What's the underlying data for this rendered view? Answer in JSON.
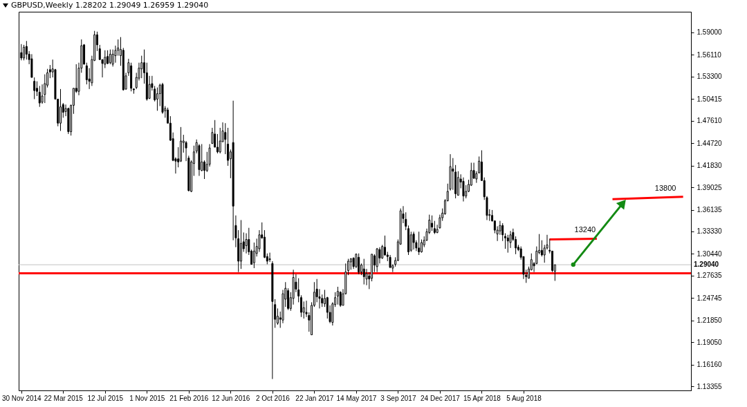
{
  "chart_data": {
    "type": "candlestick",
    "title": "GBPUSD,Weekly  1.28202 1.29049 1.26959 1.29040",
    "x": [
      "2014-11-30",
      "2014-12-07",
      "2014-12-14",
      "2014-12-21",
      "2014-12-28",
      "2015-01-04",
      "2015-01-11",
      "2015-01-18",
      "2015-01-25",
      "2015-02-01",
      "2015-02-08",
      "2015-02-15",
      "2015-02-22",
      "2015-03-01",
      "2015-03-08",
      "2015-03-15",
      "2015-03-22",
      "2015-03-29",
      "2015-04-05",
      "2015-04-12",
      "2015-04-19",
      "2015-04-26",
      "2015-05-03",
      "2015-05-10",
      "2015-05-17",
      "2015-05-24",
      "2015-05-31",
      "2015-06-07",
      "2015-06-14",
      "2015-06-21",
      "2015-06-28",
      "2015-07-05",
      "2015-07-12",
      "2015-07-19",
      "2015-07-26",
      "2015-08-02",
      "2015-08-09",
      "2015-08-16",
      "2015-08-23",
      "2015-08-30",
      "2015-09-06",
      "2015-09-13",
      "2015-09-20",
      "2015-09-27",
      "2015-10-04",
      "2015-10-11",
      "2015-10-18",
      "2015-10-25",
      "2015-11-01",
      "2015-11-08",
      "2015-11-15",
      "2015-11-22",
      "2015-11-29",
      "2015-12-06",
      "2015-12-13",
      "2015-12-20",
      "2015-12-27",
      "2016-01-03",
      "2016-01-10",
      "2016-01-17",
      "2016-01-24",
      "2016-01-31",
      "2016-02-07",
      "2016-02-14",
      "2016-02-21",
      "2016-02-28",
      "2016-03-06",
      "2016-03-13",
      "2016-03-20",
      "2016-03-27",
      "2016-04-03",
      "2016-04-10",
      "2016-04-17",
      "2016-04-24",
      "2016-05-01",
      "2016-05-08",
      "2016-05-15",
      "2016-05-22",
      "2016-05-29",
      "2016-06-05",
      "2016-06-12",
      "2016-06-19",
      "2016-06-26",
      "2016-07-03",
      "2016-07-10",
      "2016-07-17",
      "2016-07-24",
      "2016-07-31",
      "2016-08-07",
      "2016-08-14",
      "2016-08-21",
      "2016-08-28",
      "2016-09-04",
      "2016-09-11",
      "2016-09-18",
      "2016-09-25",
      "2016-10-02",
      "2016-10-09",
      "2016-10-16",
      "2016-10-23",
      "2016-10-30",
      "2016-11-06",
      "2016-11-13",
      "2016-11-20",
      "2016-11-27",
      "2016-12-04",
      "2016-12-11",
      "2016-12-18",
      "2016-12-25",
      "2017-01-01",
      "2017-01-08",
      "2017-01-15",
      "2017-01-22",
      "2017-01-29",
      "2017-02-05",
      "2017-02-12",
      "2017-02-19",
      "2017-02-26",
      "2017-03-05",
      "2017-03-12",
      "2017-03-19",
      "2017-03-26",
      "2017-04-02",
      "2017-04-09",
      "2017-04-16",
      "2017-04-23",
      "2017-04-30",
      "2017-05-07",
      "2017-05-14",
      "2017-05-21",
      "2017-05-28",
      "2017-06-04",
      "2017-06-11",
      "2017-06-18",
      "2017-06-25",
      "2017-07-02",
      "2017-07-09",
      "2017-07-16",
      "2017-07-23",
      "2017-07-30",
      "2017-08-06",
      "2017-08-13",
      "2017-08-20",
      "2017-08-27",
      "2017-09-03",
      "2017-09-10",
      "2017-09-17",
      "2017-09-24",
      "2017-10-01",
      "2017-10-08",
      "2017-10-15",
      "2017-10-22",
      "2017-10-29",
      "2017-11-05",
      "2017-11-12",
      "2017-11-19",
      "2017-11-26",
      "2017-12-03",
      "2017-12-10",
      "2017-12-17",
      "2017-12-24",
      "2017-12-31",
      "2018-01-07",
      "2018-01-14",
      "2018-01-21",
      "2018-01-28",
      "2018-02-04",
      "2018-02-11",
      "2018-02-18",
      "2018-02-25",
      "2018-03-04",
      "2018-03-11",
      "2018-03-18",
      "2018-03-25",
      "2018-04-01",
      "2018-04-08",
      "2018-04-15",
      "2018-04-22",
      "2018-04-29",
      "2018-05-06",
      "2018-05-13",
      "2018-05-20",
      "2018-05-27",
      "2018-06-03",
      "2018-06-10",
      "2018-06-17",
      "2018-06-24",
      "2018-07-01",
      "2018-07-08",
      "2018-07-15",
      "2018-07-22",
      "2018-07-29",
      "2018-08-05",
      "2018-08-12",
      "2018-08-19",
      "2018-08-26",
      "2018-09-02",
      "2018-09-09",
      "2018-09-16",
      "2018-09-23",
      "2018-09-30",
      "2018-10-07",
      "2018-10-14",
      "2018-10-21",
      "2018-10-28"
    ],
    "ohlc": [
      [
        1.564,
        1.575,
        1.554,
        1.557
      ],
      [
        1.557,
        1.574,
        1.554,
        1.571
      ],
      [
        1.572,
        1.579,
        1.555,
        1.562
      ],
      [
        1.562,
        1.566,
        1.549,
        1.555
      ],
      [
        1.556,
        1.562,
        1.532,
        1.532
      ],
      [
        1.527,
        1.532,
        1.504,
        1.515
      ],
      [
        1.518,
        1.527,
        1.508,
        1.514
      ],
      [
        1.513,
        1.521,
        1.494,
        1.499
      ],
      [
        1.5,
        1.523,
        1.498,
        1.508
      ],
      [
        1.51,
        1.536,
        1.499,
        1.524
      ],
      [
        1.522,
        1.543,
        1.519,
        1.538
      ],
      [
        1.542,
        1.548,
        1.531,
        1.539
      ],
      [
        1.539,
        1.555,
        1.532,
        1.543
      ],
      [
        1.542,
        1.543,
        1.504,
        1.504
      ],
      [
        1.504,
        1.504,
        1.469,
        1.473
      ],
      [
        1.473,
        1.517,
        1.463,
        1.494
      ],
      [
        1.497,
        1.499,
        1.48,
        1.487
      ],
      [
        1.488,
        1.497,
        1.482,
        1.492
      ],
      [
        1.492,
        1.493,
        1.459,
        1.462
      ],
      [
        1.462,
        1.497,
        1.457,
        1.496
      ],
      [
        1.496,
        1.518,
        1.485,
        1.518
      ],
      [
        1.518,
        1.549,
        1.512,
        1.514
      ],
      [
        1.514,
        1.551,
        1.509,
        1.544
      ],
      [
        1.544,
        1.581,
        1.538,
        1.573
      ],
      [
        1.574,
        1.575,
        1.549,
        1.549
      ],
      [
        1.547,
        1.551,
        1.523,
        1.529
      ],
      [
        1.53,
        1.544,
        1.517,
        1.527
      ],
      [
        1.525,
        1.56,
        1.521,
        1.555
      ],
      [
        1.554,
        1.592,
        1.553,
        1.587
      ],
      [
        1.587,
        1.591,
        1.566,
        1.574
      ],
      [
        1.569,
        1.574,
        1.555,
        1.555
      ],
      [
        1.555,
        1.555,
        1.532,
        1.55
      ],
      [
        1.549,
        1.567,
        1.544,
        1.558
      ],
      [
        1.559,
        1.567,
        1.549,
        1.55
      ],
      [
        1.551,
        1.568,
        1.549,
        1.562
      ],
      [
        1.549,
        1.568,
        1.546,
        1.562
      ],
      [
        1.56,
        1.573,
        1.551,
        1.567
      ],
      [
        1.567,
        1.581,
        1.56,
        1.57
      ],
      [
        1.56,
        1.584,
        1.547,
        1.568
      ],
      [
        1.567,
        1.57,
        1.515,
        1.516
      ],
      [
        1.517,
        1.538,
        1.516,
        1.534
      ],
      [
        1.538,
        1.556,
        1.534,
        1.551
      ],
      [
        1.547,
        1.551,
        1.514,
        1.518
      ],
      [
        1.517,
        1.518,
        1.511,
        1.516
      ],
      [
        1.519,
        1.538,
        1.517,
        1.532
      ],
      [
        1.531,
        1.551,
        1.528,
        1.544
      ],
      [
        1.543,
        1.56,
        1.531,
        1.551
      ],
      [
        1.551,
        1.568,
        1.524,
        1.538
      ],
      [
        1.538,
        1.551,
        1.502,
        1.504
      ],
      [
        1.505,
        1.534,
        1.504,
        1.523
      ],
      [
        1.524,
        1.534,
        1.515,
        1.519
      ],
      [
        1.517,
        1.521,
        1.501,
        1.503
      ],
      [
        1.504,
        1.519,
        1.489,
        1.511
      ],
      [
        1.511,
        1.524,
        1.495,
        1.522
      ],
      [
        1.523,
        1.525,
        1.485,
        1.487
      ],
      [
        1.489,
        1.495,
        1.48,
        1.492
      ],
      [
        1.49,
        1.493,
        1.473,
        1.473
      ],
      [
        1.473,
        1.482,
        1.45,
        1.451
      ],
      [
        1.453,
        1.461,
        1.424,
        1.425
      ],
      [
        1.427,
        1.429,
        1.408,
        1.424
      ],
      [
        1.427,
        1.442,
        1.416,
        1.423
      ],
      [
        1.424,
        1.468,
        1.423,
        1.45
      ],
      [
        1.448,
        1.458,
        1.435,
        1.45
      ],
      [
        1.448,
        1.45,
        1.424,
        1.441
      ],
      [
        1.428,
        1.431,
        1.385,
        1.386
      ],
      [
        1.385,
        1.425,
        1.384,
        1.423
      ],
      [
        1.421,
        1.444,
        1.405,
        1.436
      ],
      [
        1.437,
        1.452,
        1.434,
        1.448
      ],
      [
        1.444,
        1.446,
        1.405,
        1.413
      ],
      [
        1.412,
        1.446,
        1.411,
        1.423
      ],
      [
        1.423,
        1.425,
        1.401,
        1.412
      ],
      [
        1.412,
        1.436,
        1.41,
        1.42
      ],
      [
        1.42,
        1.446,
        1.417,
        1.441
      ],
      [
        1.447,
        1.467,
        1.446,
        1.461
      ],
      [
        1.459,
        1.477,
        1.442,
        1.442
      ],
      [
        1.442,
        1.459,
        1.434,
        1.436
      ],
      [
        1.436,
        1.467,
        1.434,
        1.45
      ],
      [
        1.449,
        1.474,
        1.449,
        1.463
      ],
      [
        1.461,
        1.473,
        1.433,
        1.452
      ],
      [
        1.446,
        1.467,
        1.418,
        1.425
      ],
      [
        1.427,
        1.439,
        1.402,
        1.436
      ],
      [
        1.448,
        1.502,
        1.322,
        1.366
      ],
      [
        1.341,
        1.354,
        1.313,
        1.325
      ],
      [
        1.324,
        1.335,
        1.281,
        1.295
      ],
      [
        1.295,
        1.348,
        1.285,
        1.318
      ],
      [
        1.32,
        1.332,
        1.307,
        1.311
      ],
      [
        1.315,
        1.331,
        1.305,
        1.323
      ],
      [
        1.323,
        1.338,
        1.303,
        1.307
      ],
      [
        1.308,
        1.31,
        1.291,
        1.291
      ],
      [
        1.293,
        1.319,
        1.286,
        1.308
      ],
      [
        1.305,
        1.324,
        1.301,
        1.314
      ],
      [
        1.311,
        1.335,
        1.307,
        1.329
      ],
      [
        1.329,
        1.345,
        1.324,
        1.325
      ],
      [
        1.326,
        1.335,
        1.299,
        1.3
      ],
      [
        1.301,
        1.305,
        1.291,
        1.295
      ],
      [
        1.298,
        1.306,
        1.294,
        1.297
      ],
      [
        1.292,
        1.295,
        1.143,
        1.243
      ],
      [
        1.239,
        1.246,
        1.209,
        1.22
      ],
      [
        1.215,
        1.234,
        1.213,
        1.224
      ],
      [
        1.222,
        1.23,
        1.209,
        1.22
      ],
      [
        1.219,
        1.258,
        1.215,
        1.253
      ],
      [
        1.246,
        1.268,
        1.236,
        1.26
      ],
      [
        1.257,
        1.26,
        1.232,
        1.234
      ],
      [
        1.234,
        1.255,
        1.231,
        1.248
      ],
      [
        1.247,
        1.284,
        1.239,
        1.274
      ],
      [
        1.268,
        1.278,
        1.255,
        1.259
      ],
      [
        1.258,
        1.273,
        1.242,
        1.25
      ],
      [
        1.248,
        1.251,
        1.223,
        1.229
      ],
      [
        1.229,
        1.243,
        1.221,
        1.235
      ],
      [
        1.229,
        1.244,
        1.223,
        1.227
      ],
      [
        1.225,
        1.229,
        1.204,
        1.219
      ],
      [
        1.2,
        1.242,
        1.2,
        1.238
      ],
      [
        1.238,
        1.268,
        1.236,
        1.255
      ],
      [
        1.259,
        1.272,
        1.242,
        1.249
      ],
      [
        1.249,
        1.259,
        1.234,
        1.247
      ],
      [
        1.247,
        1.252,
        1.236,
        1.241
      ],
      [
        1.24,
        1.258,
        1.236,
        1.247
      ],
      [
        1.248,
        1.249,
        1.221,
        1.229
      ],
      [
        1.229,
        1.238,
        1.215,
        1.217
      ],
      [
        1.216,
        1.242,
        1.212,
        1.24
      ],
      [
        1.239,
        1.255,
        1.236,
        1.248
      ],
      [
        1.25,
        1.262,
        1.239,
        1.256
      ],
      [
        1.255,
        1.256,
        1.236,
        1.238
      ],
      [
        1.238,
        1.259,
        1.238,
        1.253
      ],
      [
        1.253,
        1.292,
        1.252,
        1.281
      ],
      [
        1.283,
        1.298,
        1.277,
        1.295
      ],
      [
        1.294,
        1.299,
        1.284,
        1.298
      ],
      [
        1.299,
        1.3,
        1.285,
        1.288
      ],
      [
        1.288,
        1.305,
        1.286,
        1.304
      ],
      [
        1.3,
        1.305,
        1.278,
        1.281
      ],
      [
        1.281,
        1.292,
        1.277,
        1.29
      ],
      [
        1.285,
        1.298,
        1.265,
        1.275
      ],
      [
        1.272,
        1.285,
        1.264,
        1.279
      ],
      [
        1.276,
        1.281,
        1.259,
        1.272
      ],
      [
        1.273,
        1.304,
        1.269,
        1.304
      ],
      [
        1.302,
        1.304,
        1.281,
        1.29
      ],
      [
        1.288,
        1.312,
        1.281,
        1.311
      ],
      [
        1.31,
        1.313,
        1.292,
        1.299
      ],
      [
        1.299,
        1.316,
        1.298,
        1.314
      ],
      [
        1.313,
        1.328,
        1.302,
        1.303
      ],
      [
        1.303,
        1.307,
        1.295,
        1.301
      ],
      [
        1.3,
        1.303,
        1.286,
        1.287
      ],
      [
        1.286,
        1.291,
        1.281,
        1.289
      ],
      [
        1.291,
        1.3,
        1.288,
        1.296
      ],
      [
        1.296,
        1.323,
        1.295,
        1.32
      ],
      [
        1.317,
        1.363,
        1.316,
        1.36
      ],
      [
        1.356,
        1.366,
        1.344,
        1.35
      ],
      [
        1.349,
        1.358,
        1.335,
        1.34
      ],
      [
        1.337,
        1.341,
        1.303,
        1.307
      ],
      [
        1.309,
        1.333,
        1.307,
        1.329
      ],
      [
        1.33,
        1.333,
        1.31,
        1.319
      ],
      [
        1.319,
        1.322,
        1.308,
        1.312
      ],
      [
        1.312,
        1.333,
        1.303,
        1.307
      ],
      [
        1.307,
        1.323,
        1.306,
        1.319
      ],
      [
        1.316,
        1.327,
        1.313,
        1.322
      ],
      [
        1.322,
        1.337,
        1.321,
        1.333
      ],
      [
        1.332,
        1.355,
        1.33,
        1.348
      ],
      [
        1.344,
        1.354,
        1.334,
        1.339
      ],
      [
        1.337,
        1.347,
        1.33,
        1.332
      ],
      [
        1.332,
        1.342,
        1.331,
        1.336
      ],
      [
        1.338,
        1.355,
        1.337,
        1.351
      ],
      [
        1.351,
        1.363,
        1.347,
        1.357
      ],
      [
        1.356,
        1.375,
        1.355,
        1.373
      ],
      [
        1.373,
        1.395,
        1.372,
        1.385
      ],
      [
        1.388,
        1.433,
        1.386,
        1.417
      ],
      [
        1.414,
        1.428,
        1.387,
        1.411
      ],
      [
        1.41,
        1.419,
        1.376,
        1.382
      ],
      [
        1.38,
        1.411,
        1.38,
        1.403
      ],
      [
        1.401,
        1.407,
        1.389,
        1.397
      ],
      [
        1.398,
        1.403,
        1.372,
        1.379
      ],
      [
        1.379,
        1.393,
        1.376,
        1.385
      ],
      [
        1.385,
        1.4,
        1.384,
        1.394
      ],
      [
        1.393,
        1.422,
        1.392,
        1.412
      ],
      [
        1.412,
        1.422,
        1.401,
        1.402
      ],
      [
        1.401,
        1.411,
        1.396,
        1.408
      ],
      [
        1.409,
        1.43,
        1.408,
        1.424
      ],
      [
        1.423,
        1.438,
        1.399,
        1.399
      ],
      [
        1.399,
        1.403,
        1.374,
        1.378
      ],
      [
        1.377,
        1.379,
        1.348,
        1.354
      ],
      [
        1.354,
        1.362,
        1.347,
        1.355
      ],
      [
        1.354,
        1.361,
        1.346,
        1.347
      ],
      [
        1.347,
        1.347,
        1.331,
        1.335
      ],
      [
        1.33,
        1.34,
        1.321,
        1.335
      ],
      [
        1.334,
        1.347,
        1.329,
        1.341
      ],
      [
        1.341,
        1.344,
        1.321,
        1.329
      ],
      [
        1.327,
        1.331,
        1.311,
        1.325
      ],
      [
        1.325,
        1.329,
        1.306,
        1.321
      ],
      [
        1.319,
        1.334,
        1.312,
        1.329
      ],
      [
        1.332,
        1.337,
        1.321,
        1.323
      ],
      [
        1.323,
        1.327,
        1.304,
        1.312
      ],
      [
        1.313,
        1.316,
        1.308,
        1.31
      ],
      [
        1.311,
        1.314,
        1.297,
        1.3
      ],
      [
        1.301,
        1.301,
        1.272,
        1.278
      ],
      [
        1.277,
        1.284,
        1.267,
        1.275
      ],
      [
        1.273,
        1.288,
        1.273,
        1.285
      ],
      [
        1.284,
        1.305,
        1.283,
        1.297
      ],
      [
        1.292,
        1.294,
        1.281,
        1.289
      ],
      [
        1.292,
        1.314,
        1.291,
        1.308
      ],
      [
        1.306,
        1.33,
        1.304,
        1.309
      ],
      [
        1.309,
        1.322,
        1.301,
        1.303
      ],
      [
        1.303,
        1.316,
        1.293,
        1.312
      ],
      [
        1.312,
        1.329,
        1.31,
        1.316
      ],
      [
        1.309,
        1.324,
        1.305,
        1.308
      ],
      [
        1.308,
        1.308,
        1.281,
        1.283
      ],
      [
        1.28202,
        1.29049,
        1.26959,
        1.2904
      ]
    ],
    "series": [
      {
        "type": "line",
        "name": "13240",
        "color": "#ff0000",
        "x": [
          "2018-10-14",
          "2019-02-17"
        ],
        "values": [
          1.323,
          1.324
        ]
      },
      {
        "type": "line",
        "name": "13800",
        "color": "#ff0000",
        "x": [
          "2019-03-31",
          "2019-10-06"
        ],
        "values": [
          1.375,
          1.378
        ]
      }
    ],
    "xlim": [
      "2014-11-23",
      "2019-10-27"
    ],
    "xticks": [
      {
        "value": "2014-11-30",
        "label": "30 Nov 2014"
      },
      {
        "value": "2015-03-22",
        "label": "22 Mar 2015"
      },
      {
        "value": "2015-07-12",
        "label": "12 Jul 2015"
      },
      {
        "value": "2015-11-01",
        "label": "1 Nov 2015"
      },
      {
        "value": "2016-02-21",
        "label": "21 Feb 2016"
      },
      {
        "value": "2016-06-12",
        "label": "12 Jun 2016"
      },
      {
        "value": "2016-10-02",
        "label": "2 Oct 2016"
      },
      {
        "value": "2017-01-22",
        "label": "22 Jan 2017"
      },
      {
        "value": "2017-05-14",
        "label": "14 May 2017"
      },
      {
        "value": "2017-09-03",
        "label": "3 Sep 2017"
      },
      {
        "value": "2017-12-24",
        "label": "24 Dec 2017"
      },
      {
        "value": "2018-04-15",
        "label": "15 Apr 2018"
      },
      {
        "value": "2018-08-05",
        "label": "5 Aug 2018"
      }
    ],
    "ylim": [
      1.1283,
      1.6167
    ],
    "yticks": [
      {
        "value": 1.59,
        "label": "1.59000"
      },
      {
        "value": 1.5611,
        "label": "1.56110"
      },
      {
        "value": 1.533,
        "label": "1.53300"
      },
      {
        "value": 1.50415,
        "label": "1.50415"
      },
      {
        "value": 1.4761,
        "label": "1.47610"
      },
      {
        "value": 1.4472,
        "label": "1.44720"
      },
      {
        "value": 1.4183,
        "label": "1.41830"
      },
      {
        "value": 1.39025,
        "label": "1.39025"
      },
      {
        "value": 1.36135,
        "label": "1.36135"
      },
      {
        "value": 1.3333,
        "label": "1.33330"
      },
      {
        "value": 1.3044,
        "label": "1.30440"
      },
      {
        "value": 1.27635,
        "label": "1.27635"
      },
      {
        "value": 1.24745,
        "label": "1.24745"
      },
      {
        "value": 1.2185,
        "label": "1.21850"
      },
      {
        "value": 1.1905,
        "label": "1.19050"
      },
      {
        "value": 1.1616,
        "label": "1.16160"
      },
      {
        "value": 1.13355,
        "label": "1.13355"
      }
    ],
    "ref_lines": [
      {
        "axis": "y",
        "value": 1.2904,
        "label": "1.29040",
        "color": "#c0c0c0"
      },
      {
        "axis": "y",
        "value": 1.2793,
        "color": "#ff0000"
      }
    ]
  }
}
